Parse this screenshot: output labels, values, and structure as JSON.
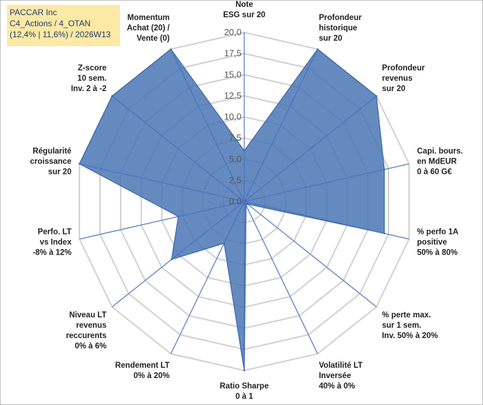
{
  "header": {
    "line1": "PACCAR Inc",
    "line2": "C4_Actions / 4_OTAN",
    "line3": "(12,4% | 11,6%) / 2026W13"
  },
  "colors": {
    "fill": "#4a76b4",
    "stroke": "#3a64a8",
    "grid": "#d0d0d0",
    "axis_line": "#4472c4",
    "title_bg": "#fde9a6"
  },
  "chart_data": {
    "type": "radar",
    "title": "PACCAR Inc",
    "rmin": 0,
    "rmax": 20,
    "tick_labels": [
      "0,0",
      "2,5",
      "5,0",
      "7,5",
      "10,0",
      "12,5",
      "15,0",
      "17,5",
      "20,0"
    ],
    "ticks": [
      0,
      2.5,
      5,
      7.5,
      10,
      12.5,
      15,
      17.5,
      20
    ],
    "axes": [
      {
        "label": [
          "Note",
          "ESG sur 20"
        ],
        "value": 6
      },
      {
        "label": [
          "Profondeur",
          "historique",
          "sur 20"
        ],
        "value": 20
      },
      {
        "label": [
          "Profondeur",
          "revenus",
          "sur 20"
        ],
        "value": 20
      },
      {
        "label": [
          "Capi. bours.",
          "en MdEUR",
          "0 à 60 G€"
        ],
        "value": 17
      },
      {
        "label": [
          "% perfo 1A",
          "positive",
          "50% à 80%"
        ],
        "value": 17
      },
      {
        "label": [
          "% perte max.",
          "sur 1 sem.",
          "Inv. 50% à 20%"
        ],
        "value": 0.5
      },
      {
        "label": [
          "Volatilité LT",
          "Inversée",
          "40% à 0%"
        ],
        "value": 0.5
      },
      {
        "label": [
          "Ratio Sharpe",
          "0 à 1"
        ],
        "value": 20
      },
      {
        "label": [
          "Rendement LT",
          "0% à 20%"
        ],
        "value": 5.5
      },
      {
        "label": [
          "Niveau LT",
          "revenus",
          "reccurents",
          "0% à 6%"
        ],
        "value": 11
      },
      {
        "label": [
          "Perfo. LT",
          "vs Index",
          "-8% à 12%"
        ],
        "value": 8
      },
      {
        "label": [
          "Régularité",
          "croissance",
          "sur 20"
        ],
        "value": 20
      },
      {
        "label": [
          "Z-score",
          "10 sem.",
          "Inv. 2 à -2"
        ],
        "value": 20
      },
      {
        "label": [
          "Momentum",
          "Achat (20) /",
          "Vente (0)"
        ],
        "value": 20
      }
    ]
  }
}
